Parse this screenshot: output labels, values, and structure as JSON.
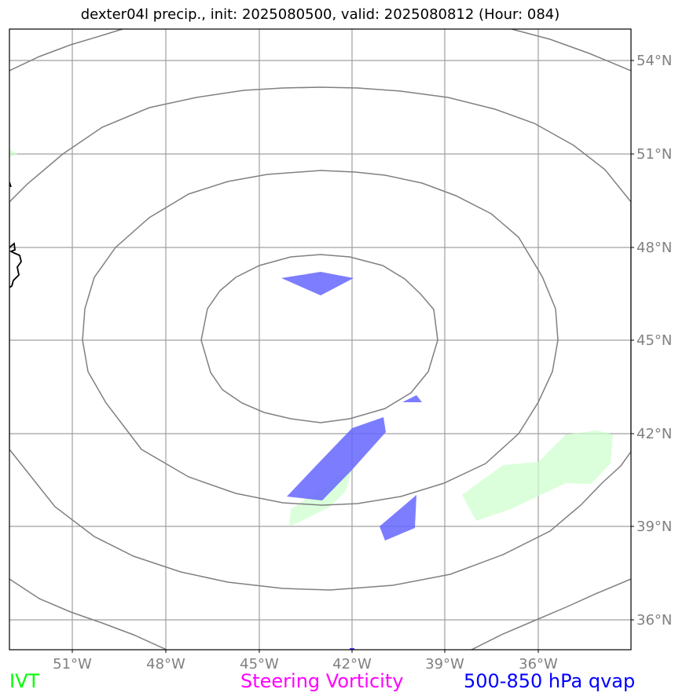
{
  "title": "dexter04l precip., init: 2025080500, valid: 2025080812 (Hour: 084)",
  "lon_labels": [
    "51°W",
    "48°W",
    "45°W",
    "42°W",
    "39°W",
    "36°W"
  ],
  "lat_labels": [
    "54°N",
    "51°N",
    "48°N",
    "45°N",
    "42°N",
    "39°N",
    "36°N"
  ],
  "legend": {
    "ivt": "IVT",
    "steering_vorticity": "Steering Vorticity",
    "qvap": "500-850 hPa qvap"
  },
  "colors": {
    "ivt": "#00ff00",
    "steering_vorticity": "#ff00ff",
    "qvap": "#0000ff",
    "ivt_fill": "#ccffcc",
    "qvap_fill": "#6666ff",
    "contour": "#808080",
    "grid": "#a0a0a0",
    "coast": "#000000"
  }
}
